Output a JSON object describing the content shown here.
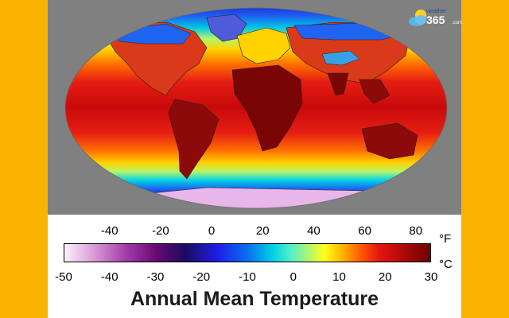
{
  "title": "Annual Mean Temperature",
  "logo": {
    "top_text": "weather",
    "number": "365",
    "suffix": ".com"
  },
  "legend": {
    "fahrenheit_unit": "°F",
    "celsius_unit": "°C",
    "fahrenheit_ticks": [
      "-40",
      "-20",
      "0",
      "20",
      "40",
      "60",
      "80"
    ],
    "celsius_ticks": [
      "-50",
      "-40",
      "-30",
      "-20",
      "-10",
      "0",
      "10",
      "20",
      "30"
    ],
    "celsius_range": [
      -50,
      30
    ]
  },
  "colors": {
    "frame": "#f9b300",
    "ocean_background": "#808080",
    "hot": "#8b0000",
    "warm": "#ff3300",
    "mild": "#ffe600",
    "cool": "#00d2e6",
    "cold": "#1e1ee6",
    "polar": "#f3d7f5"
  }
}
